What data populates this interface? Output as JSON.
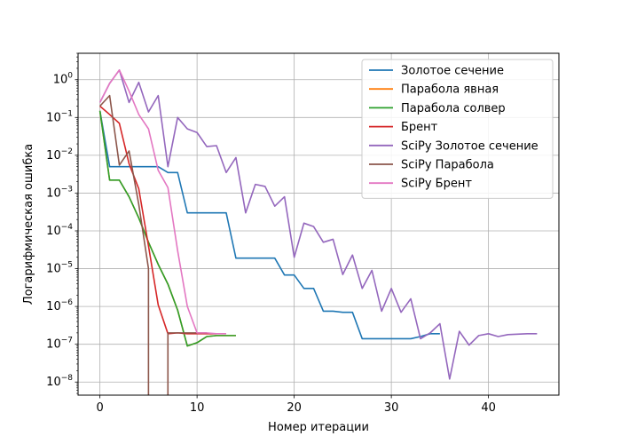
{
  "chart_data": {
    "type": "line",
    "title": "",
    "xlabel": "Номер итерации",
    "ylabel": "Логарифмическая ошибка",
    "xscale": "linear",
    "yscale": "log",
    "xlim": [
      -2.25,
      47.25
    ],
    "ylim": [
      4.5e-09,
      5
    ],
    "x_ticks": [
      0,
      10,
      20,
      30,
      40
    ],
    "x_tick_labels": [
      "0",
      "10",
      "20",
      "30",
      "40"
    ],
    "y_ticks": [
      1e-08,
      1e-07,
      1e-06,
      1e-05,
      0.0001,
      0.001,
      0.01,
      0.1,
      1
    ],
    "y_tick_exponents": [
      "−8",
      "−7",
      "−6",
      "−5",
      "−4",
      "−3",
      "−2",
      "−1",
      "0"
    ],
    "grid": true,
    "legend_position": "top-right",
    "series": [
      {
        "name": "Золотое сечение",
        "color": "#1f77b4",
        "x": [
          0,
          1,
          2,
          3,
          4,
          5,
          6,
          7,
          8,
          9,
          10,
          11,
          12,
          13,
          14,
          15,
          16,
          17,
          18,
          19,
          20,
          21,
          22,
          23,
          24,
          25,
          26,
          27,
          28,
          29,
          30,
          31,
          32,
          33,
          34,
          35
        ],
        "y": [
          0.15,
          0.005,
          0.005,
          0.005,
          0.005,
          0.005,
          0.005,
          0.0035,
          0.0035,
          0.0003,
          0.0003,
          0.0003,
          0.0003,
          0.0003,
          1.9e-05,
          1.9e-05,
          1.9e-05,
          1.9e-05,
          1.9e-05,
          6.8e-06,
          6.8e-06,
          3e-06,
          3e-06,
          7.5e-07,
          7.5e-07,
          7e-07,
          7e-07,
          1.4e-07,
          1.4e-07,
          1.4e-07,
          1.4e-07,
          1.4e-07,
          1.4e-07,
          1.6e-07,
          1.9e-07,
          1.9e-07
        ]
      },
      {
        "name": "Парабола явная",
        "color": "#ff7f0e",
        "x": [
          0,
          1,
          2,
          3,
          4,
          5,
          6,
          7,
          8,
          9,
          10,
          11,
          12,
          13,
          14
        ],
        "y": [
          0.15,
          0.0022,
          0.0022,
          0.0008,
          0.00022,
          5e-05,
          1.3e-05,
          3.9e-06,
          8e-07,
          9e-08,
          1.1e-07,
          1.6e-07,
          1.7e-07,
          1.7e-07,
          1.7e-07
        ]
      },
      {
        "name": "Парабола солвер",
        "color": "#2ca02c",
        "x": [
          0,
          1,
          2,
          3,
          4,
          5,
          6,
          7,
          8,
          9,
          10,
          11,
          12,
          13,
          14
        ],
        "y": [
          0.15,
          0.0022,
          0.0022,
          0.0008,
          0.00022,
          5e-05,
          1.3e-05,
          3.9e-06,
          8e-07,
          9e-08,
          1.1e-07,
          1.6e-07,
          1.7e-07,
          1.7e-07,
          1.7e-07
        ]
      },
      {
        "name": "Брент",
        "color": "#d62728",
        "x": [
          0,
          1,
          2,
          3,
          4,
          5,
          6,
          7,
          8,
          9,
          10,
          11,
          12
        ],
        "y": [
          0.2,
          0.12,
          0.07,
          0.006,
          0.0013,
          4e-05,
          1.1e-06,
          1.9e-07,
          2e-07,
          1.9e-07,
          1.9e-07,
          1.9e-07,
          1.9e-07
        ]
      },
      {
        "name": "SciPy Золотое сечение",
        "color": "#9467bd",
        "x": [
          0,
          1,
          2,
          3,
          4,
          5,
          6,
          7,
          8,
          9,
          10,
          11,
          12,
          13,
          14,
          15,
          16,
          17,
          18,
          19,
          20,
          21,
          22,
          23,
          24,
          25,
          26,
          27,
          28,
          29,
          30,
          31,
          32,
          33,
          34,
          35,
          36,
          37,
          38,
          39,
          40,
          41,
          42,
          43,
          44,
          45
        ],
        "y": [
          0.25,
          0.8,
          1.8,
          0.25,
          0.85,
          0.14,
          0.38,
          0.005,
          0.1,
          0.05,
          0.04,
          0.017,
          0.018,
          0.0035,
          0.0087,
          0.0003,
          0.0017,
          0.0015,
          0.00045,
          0.0008,
          2e-05,
          0.00016,
          0.00013,
          5e-05,
          6e-05,
          7e-06,
          2.3e-05,
          3e-06,
          9e-06,
          7.5e-07,
          3e-06,
          7e-07,
          1.6e-06,
          1.4e-07,
          2e-07,
          3.5e-07,
          1.2e-08,
          2.2e-07,
          9.5e-08,
          1.7e-07,
          1.9e-07,
          1.6e-07,
          1.8e-07,
          1.85e-07,
          1.9e-07,
          1.9e-07
        ]
      },
      {
        "name": "SciPy Парабола",
        "color": "#8c564b",
        "x": [
          0,
          1,
          2,
          3,
          4,
          5,
          5,
          7,
          7,
          8,
          9,
          10,
          11
        ],
        "y": [
          0.2,
          0.38,
          0.0055,
          0.013,
          0.0005,
          1e-05,
          1e-12,
          1e-12,
          2e-07,
          2e-07,
          2e-07,
          2e-07,
          2e-07
        ]
      },
      {
        "name": "SciPy Брент",
        "color": "#e377c2",
        "x": [
          0,
          1,
          2,
          3,
          4,
          5,
          6,
          7,
          8,
          9,
          10,
          11,
          12,
          13
        ],
        "y": [
          0.25,
          0.8,
          1.8,
          0.5,
          0.12,
          0.05,
          0.004,
          0.0014,
          3e-05,
          1e-06,
          2e-07,
          2e-07,
          1.9e-07,
          1.9e-07
        ]
      }
    ]
  }
}
